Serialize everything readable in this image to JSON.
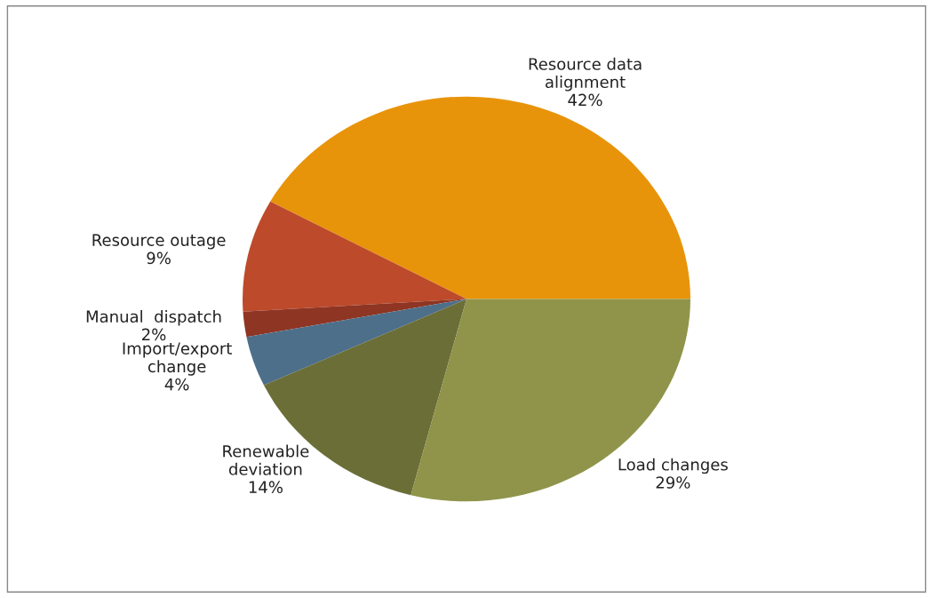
{
  "chart_data": {
    "type": "pie",
    "categories": [
      "Resource data\nalignment",
      "Resource outage",
      "Manual  dispatch",
      "Import/export\nchange",
      "Renewable\ndeviation",
      "Load changes"
    ],
    "values": [
      42,
      9,
      2,
      4,
      14,
      29
    ],
    "colors": [
      "#e8940a",
      "#bd4a2b",
      "#8f3523",
      "#4d6f8a",
      "#6b6e37",
      "#8f944a"
    ],
    "value_labels": [
      "42%",
      "9%",
      "2%",
      "4%",
      "14%",
      "29%"
    ],
    "legend": false
  }
}
